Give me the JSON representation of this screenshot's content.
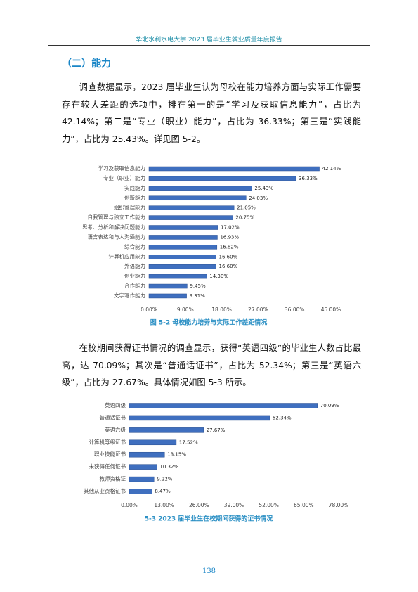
{
  "header": "华北水利水电大学 2023 届毕业生就业质量年度报告",
  "heading": "（二）能力",
  "paragraphs": [
    "调查数据显示，2023 届毕业生认为母校在能力培养方面与实际工作需要存在较大差距的选项中，排在第一的是“学习及获取信息能力”，占比为 42.14%；第二是“专业（职业）能力”，占比为 36.33%；第三是“实践能力”，占比为 25.43%。详见图 5-2。",
    "在校期间获得证书情况的调查显示，获得“英语四级”的毕业生人数占比最高，达 70.09%；其次是“普通话证书”，占比为 52.34%；第三是“英语六级”，占比为 27.67%。具体情况如图 5-3 所示。"
  ],
  "chart_data": [
    {
      "type": "barh",
      "caption": "图 5-2    母校能力培养与实际工作差距情况",
      "color": "#3f6fbf",
      "categories": [
        "学习及获取信息能力",
        "专业（职业）能力",
        "实践能力",
        "创新能力",
        "组织管理能力",
        "自我管理与独立工作能力",
        "思考、分析和解决问题能力",
        "语言表达和与人沟通能力",
        "综合能力",
        "计算机应用能力",
        "外语能力",
        "创业能力",
        "合作能力",
        "文字写作能力"
      ],
      "values": [
        42.14,
        36.33,
        25.43,
        24.03,
        21.05,
        20.75,
        17.02,
        16.93,
        16.82,
        16.6,
        16.6,
        14.3,
        9.45,
        9.31
      ],
      "value_labels": [
        "42.14%",
        "36.33%",
        "25.43%",
        "24.03%",
        "21.05%",
        "20.75%",
        "17.02%",
        "16.93%",
        "16.82%",
        "16.60%",
        "16.60%",
        "14.30%",
        "9.45%",
        "9.31%"
      ],
      "xlim": [
        0,
        45
      ],
      "xticks": [
        {
          "value": 0,
          "label": "0.00%"
        },
        {
          "value": 9,
          "label": "9.00%"
        },
        {
          "value": 18,
          "label": "18.00%"
        },
        {
          "value": 27,
          "label": "27.00%"
        },
        {
          "value": 36,
          "label": "36.00%"
        },
        {
          "value": 45,
          "label": "45.00%"
        }
      ]
    },
    {
      "type": "barh",
      "caption": "5-3    2023 届毕业生在校期间获得的证书情况",
      "color": "#3f6fbf",
      "categories": [
        "英语四级",
        "普通话证书",
        "英语六级",
        "计算机等级证书",
        "职业技能证书",
        "未获得任何证书",
        "教师资格证",
        "其他从业资格证书"
      ],
      "values": [
        70.09,
        52.34,
        27.67,
        17.52,
        13.15,
        10.32,
        9.22,
        8.47
      ],
      "value_labels": [
        "70.09%",
        "52.34%",
        "27.67%",
        "17.52%",
        "13.15%",
        "10.32%",
        "9.22%",
        "8.47%"
      ],
      "xlim": [
        0,
        78
      ],
      "xticks": [
        {
          "value": 0,
          "label": "0.00%"
        },
        {
          "value": 13,
          "label": "13.00%"
        },
        {
          "value": 26,
          "label": "26.00%"
        },
        {
          "value": 39,
          "label": "39.00%"
        },
        {
          "value": 52,
          "label": "52.00%"
        },
        {
          "value": 65,
          "label": "65.00%"
        },
        {
          "value": 78,
          "label": "78.00%"
        }
      ]
    }
  ],
  "page_number": "138"
}
